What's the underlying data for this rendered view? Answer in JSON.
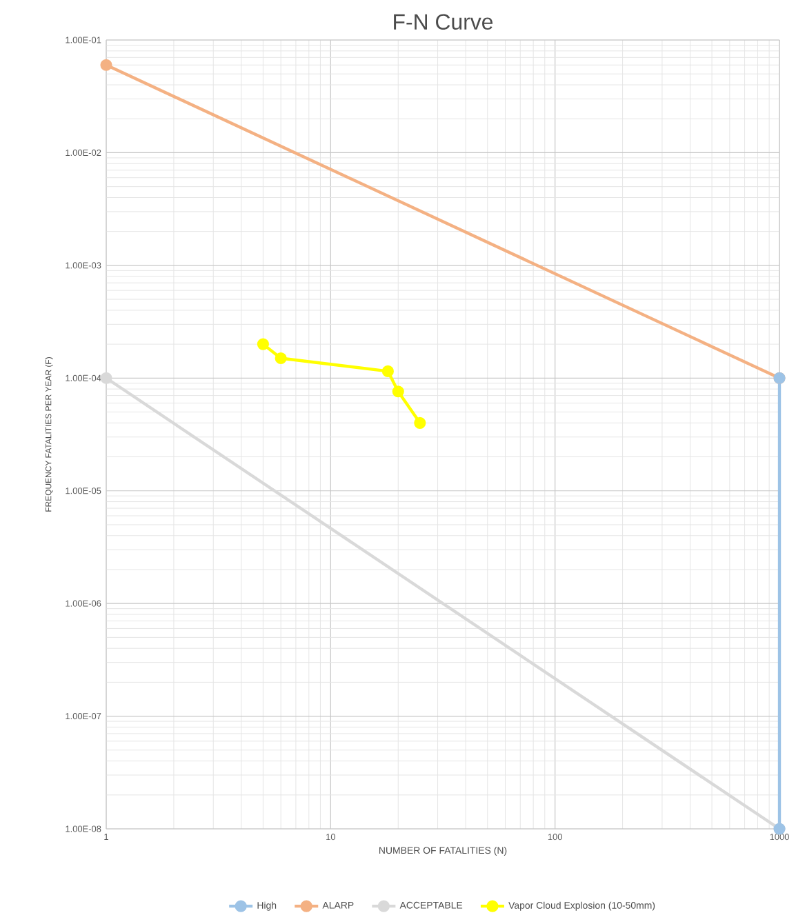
{
  "chart_data": {
    "type": "line",
    "title": "F-N Curve",
    "xlabel": "NUMBER OF FATALITIES  (N)",
    "ylabel": "FREQUENCY FATALITIES PER YEAR (F)",
    "log": "xy",
    "grid": true,
    "legend": "bottom",
    "marker": "circle",
    "xlim": [
      1,
      1000
    ],
    "ylim": [
      1e-08,
      0.1
    ],
    "xticks": [
      1,
      10,
      100,
      1000
    ],
    "yticks": [
      {
        "value": 1e-08,
        "label": "1.00E-08"
      },
      {
        "value": 1e-07,
        "label": "1.00E-07"
      },
      {
        "value": 1e-06,
        "label": "1.00E-06"
      },
      {
        "value": 1e-05,
        "label": "1.00E-05"
      },
      {
        "value": 0.0001,
        "label": "1.00E-04"
      },
      {
        "value": 0.001,
        "label": "1.00E-03"
      },
      {
        "value": 0.01,
        "label": "1.00E-02"
      },
      {
        "value": 0.1,
        "label": "1.00E-01"
      }
    ],
    "series": [
      {
        "name": "High",
        "color": "#9dc3e6",
        "x": [
          1000,
          1000
        ],
        "values": [
          0.0001,
          1e-08
        ]
      },
      {
        "name": "ALARP",
        "color": "#f4b183",
        "x": [
          1,
          1000
        ],
        "values": [
          0.06,
          0.0001
        ]
      },
      {
        "name": "ACCEPTABLE",
        "color": "#d9d9d9",
        "x": [
          1,
          1000
        ],
        "values": [
          0.0001,
          1e-08
        ]
      },
      {
        "name": "Vapor Cloud Explosion (10-50mm)",
        "color": "#ffff00",
        "x": [
          5,
          6,
          18,
          20,
          25
        ],
        "values": [
          0.0002,
          0.00015,
          0.000115,
          7.6e-05,
          4e-05
        ]
      }
    ]
  }
}
